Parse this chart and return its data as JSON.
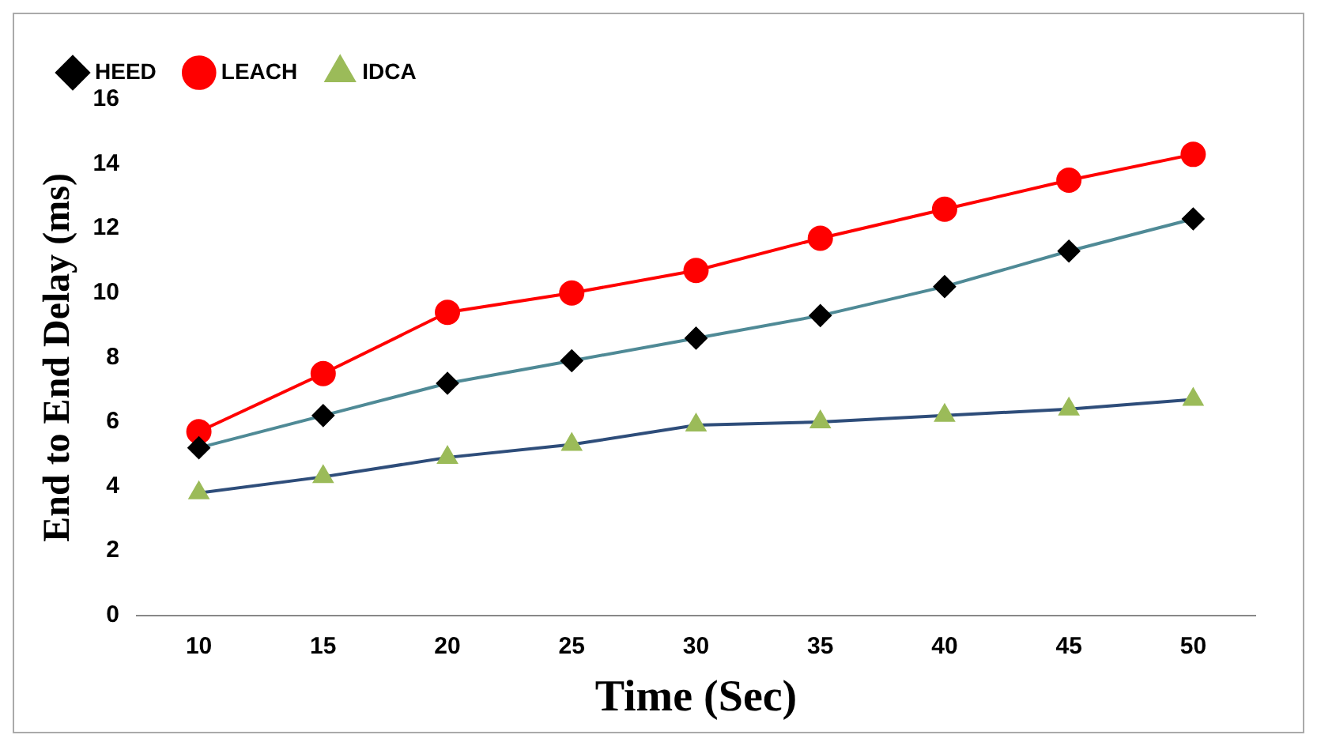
{
  "chart_data": {
    "type": "line",
    "xlabel": "Time (Sec)",
    "ylabel": "End to End Delay (ms)",
    "categories": [
      "10",
      "15",
      "20",
      "25",
      "30",
      "35",
      "40",
      "45",
      "50"
    ],
    "series": [
      {
        "name": "HEED",
        "color": "#4f8a96",
        "marker": "diamond",
        "values": [
          5.2,
          6.2,
          7.2,
          7.9,
          8.6,
          9.3,
          10.2,
          11.3,
          12.3
        ]
      },
      {
        "name": "LEACH",
        "color": "#ff0000",
        "marker": "circle",
        "values": [
          5.7,
          7.5,
          9.4,
          10.0,
          10.7,
          11.7,
          12.6,
          13.5,
          14.3
        ]
      },
      {
        "name": "IDCA",
        "color": "#2e4d7a",
        "marker": "triangle",
        "values": [
          3.8,
          4.3,
          4.9,
          5.3,
          5.9,
          6.0,
          6.2,
          6.4,
          6.7
        ]
      }
    ],
    "ylim": [
      0,
      16
    ],
    "yticks": [
      0,
      2,
      4,
      6,
      8,
      10,
      12,
      14,
      16
    ],
    "grid": false,
    "legend": "top left"
  }
}
